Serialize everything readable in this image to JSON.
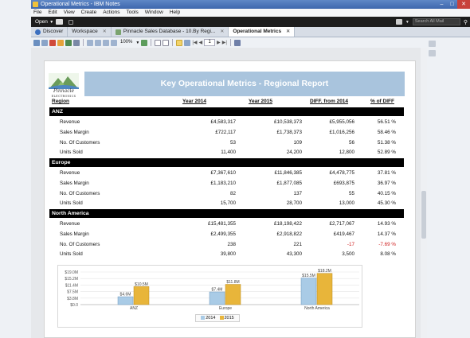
{
  "window": {
    "title": "Operational Metrics - IBM Notes"
  },
  "menu": [
    "File",
    "Edit",
    "View",
    "Create",
    "Actions",
    "Tools",
    "Window",
    "Help"
  ],
  "topbar": {
    "open_label": "Open",
    "search_placeholder": "Search All Mail"
  },
  "tabs": [
    {
      "label": "Discover",
      "active": false,
      "closable": false
    },
    {
      "label": "Workspace",
      "active": false,
      "closable": true
    },
    {
      "label": "Pinnacle Sales Database - 10.By Regi...",
      "active": false,
      "closable": true
    },
    {
      "label": "Operational Metrics",
      "active": true,
      "closable": true
    }
  ],
  "toolbar": {
    "zoom": "100%",
    "page_number": "1"
  },
  "report": {
    "logo_line1": "Pinnacle",
    "logo_line2": "ELECTRONICS",
    "title": "Key Operational Metrics - Regional Report",
    "headers": {
      "region": "Region",
      "y2014": "Year 2014",
      "y2015": "Year 2015",
      "diff": "DIFF. from 2014",
      "pct": "% of DIFF"
    },
    "regions": [
      {
        "name": "ANZ",
        "rows": [
          {
            "label": "Revenue",
            "y2014": "£4,583,317",
            "y2015": "£10,538,373",
            "diff": "£5,955,056",
            "pct": "56.51 %",
            "negative": false
          },
          {
            "label": "Sales Margin",
            "y2014": "£722,117",
            "y2015": "£1,738,373",
            "diff": "£1,016,256",
            "pct": "58.46 %",
            "negative": false
          },
          {
            "label": "No. Of Customers",
            "y2014": "53",
            "y2015": "109",
            "diff": "56",
            "pct": "51.38 %",
            "negative": false
          },
          {
            "label": "Units Sold",
            "y2014": "11,400",
            "y2015": "24,200",
            "diff": "12,800",
            "pct": "52.89 %",
            "negative": false
          }
        ]
      },
      {
        "name": "Europe",
        "rows": [
          {
            "label": "Revenue",
            "y2014": "£7,367,610",
            "y2015": "£11,846,385",
            "diff": "£4,478,775",
            "pct": "37.81 %",
            "negative": false
          },
          {
            "label": "Sales Margin",
            "y2014": "£1,183,210",
            "y2015": "£1,877,085",
            "diff": "£693,875",
            "pct": "36.97 %",
            "negative": false
          },
          {
            "label": "No. Of Customers",
            "y2014": "82",
            "y2015": "137",
            "diff": "55",
            "pct": "40.15 %",
            "negative": false
          },
          {
            "label": "Units Sold",
            "y2014": "15,700",
            "y2015": "28,700",
            "diff": "13,000",
            "pct": "45.30 %",
            "negative": false
          }
        ]
      },
      {
        "name": "North America",
        "rows": [
          {
            "label": "Revenue",
            "y2014": "£15,481,355",
            "y2015": "£18,198,422",
            "diff": "£2,717,067",
            "pct": "14.93 %",
            "negative": false
          },
          {
            "label": "Sales Margin",
            "y2014": "£2,499,355",
            "y2015": "£2,918,822",
            "diff": "£419,467",
            "pct": "14.37 %",
            "negative": false
          },
          {
            "label": "No. Of Customers",
            "y2014": "238",
            "y2015": "221",
            "diff": "-17",
            "pct": "-7.69 %",
            "negative": true
          },
          {
            "label": "Units Sold",
            "y2014": "39,800",
            "y2015": "43,300",
            "diff": "3,500",
            "pct": "8.08 %",
            "negative": false
          }
        ]
      }
    ]
  },
  "colors": {
    "bar_2014": "#a9cbe6",
    "bar_2015": "#e8b53a",
    "title_band": "#a9c4dd"
  },
  "chart_data": {
    "type": "bar",
    "categories": [
      "ANZ",
      "Europe",
      "North America"
    ],
    "series": [
      {
        "name": "2014",
        "values": [
          4.6,
          7.4,
          15.5
        ],
        "labels": [
          "$4.6M",
          "$7.4M",
          "$15.5M"
        ]
      },
      {
        "name": "2015",
        "values": [
          10.5,
          11.8,
          18.2
        ],
        "labels": [
          "$10.5M",
          "$11.8M",
          "$18.2M"
        ]
      }
    ],
    "yticks": [
      "$0.0",
      "$3.8M",
      "$7.5M",
      "$11.4M",
      "$15.2M",
      "$19.0M"
    ],
    "ylim": [
      0,
      19.0
    ],
    "legend": "bottom-center",
    "grid": true
  }
}
